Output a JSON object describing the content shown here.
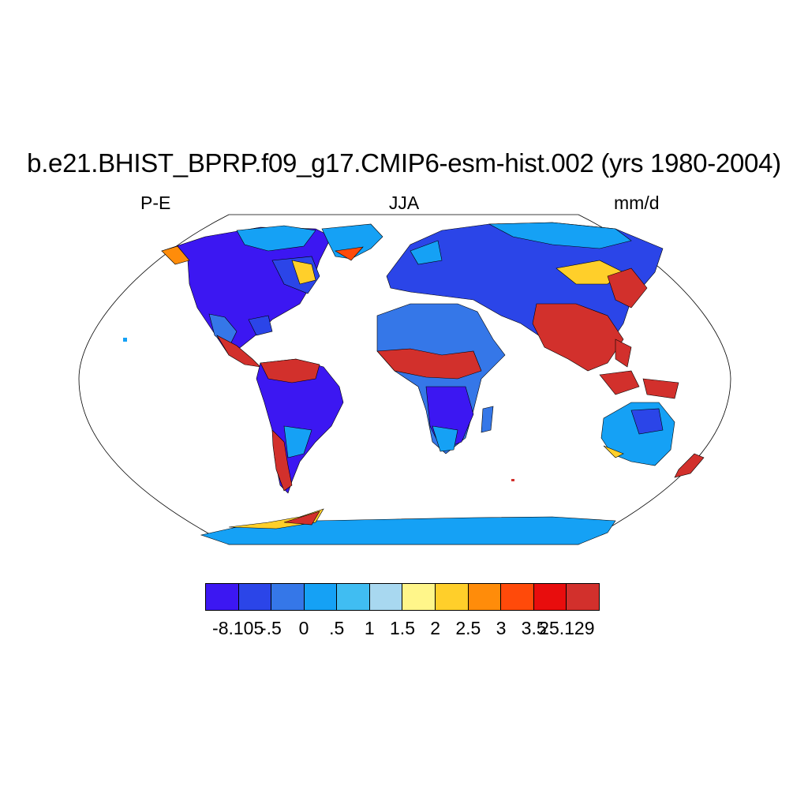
{
  "title": "b.e21.BHIST_BPRP.f09_g17.CMIP6-esm-hist.002 (yrs 1980-2004)",
  "left_label": "P-E",
  "center_label": "JJA",
  "right_label": "mm/d",
  "map": {
    "projection": "robinson",
    "field": "P-E",
    "colors": {
      "ocean": "#ffffff",
      "boundary": "#000000"
    }
  },
  "colorbar": {
    "colors": [
      "#3c17f2",
      "#2b45e8",
      "#3577e8",
      "#15a1f5",
      "#40bdf2",
      "#a8d8f0",
      "#fff68a",
      "#ffcf2a",
      "#ff8c0a",
      "#ff4a0a",
      "#e80d0d",
      "#d2302c"
    ],
    "labels": [
      "-8.105",
      "-.5",
      "0",
      ".5",
      "1",
      "1.5",
      "2",
      "2.5",
      "3",
      "3.5",
      "25.129"
    ]
  }
}
